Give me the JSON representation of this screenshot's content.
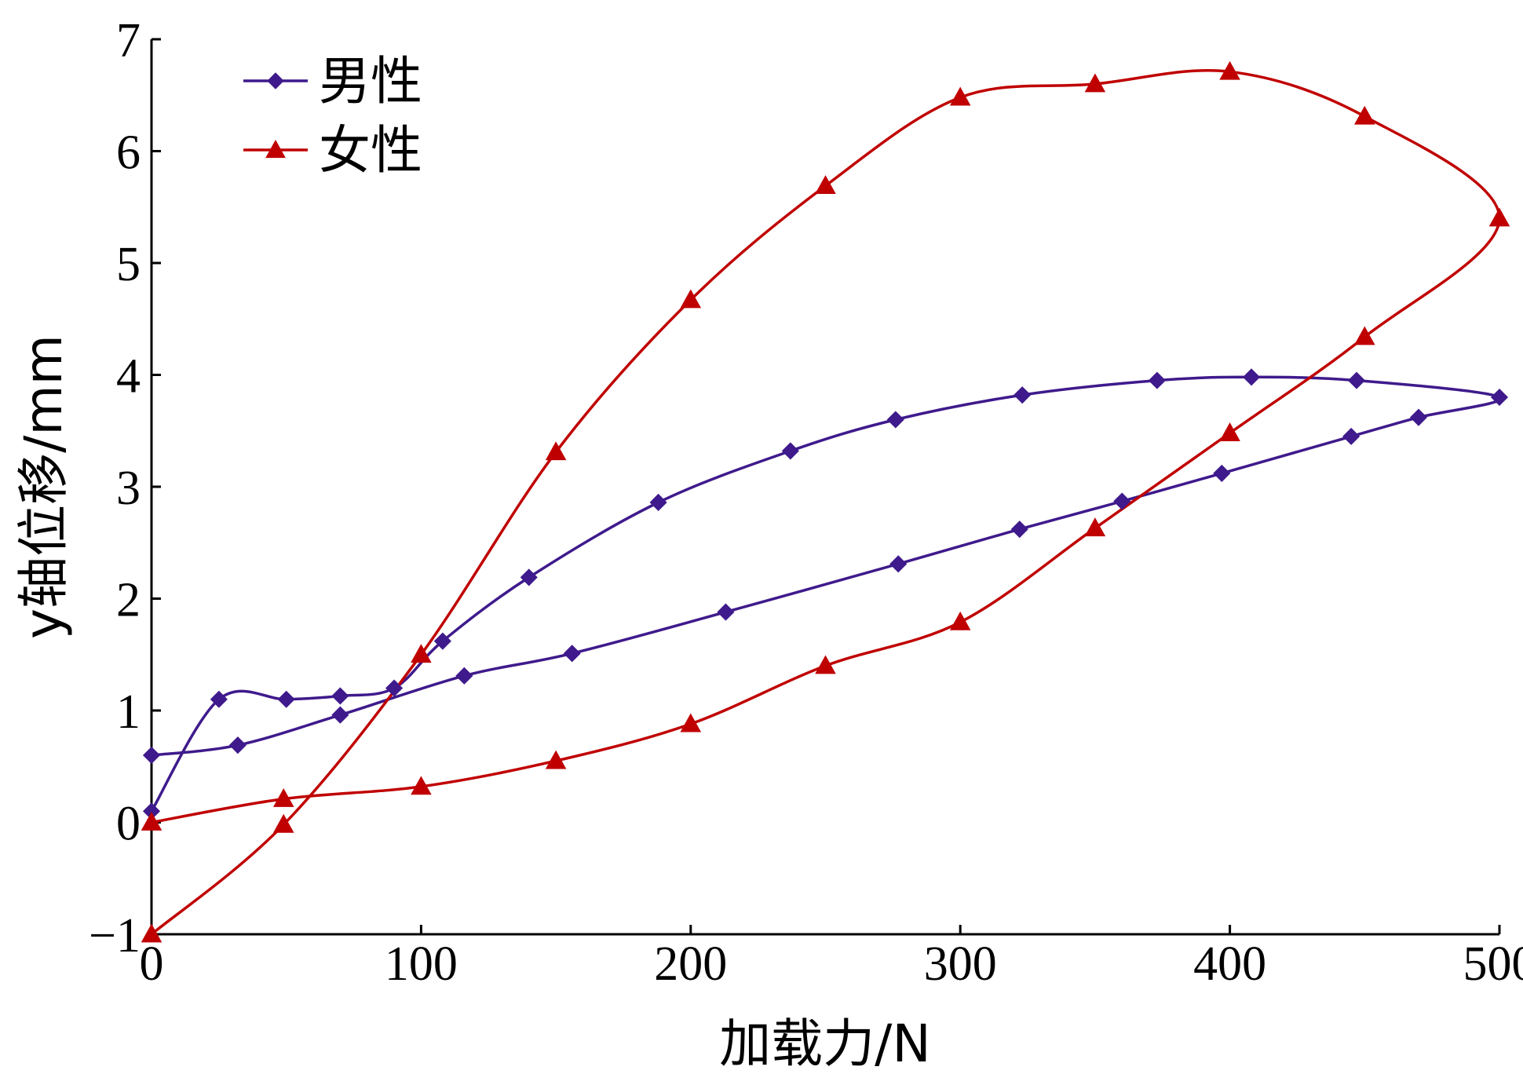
{
  "chart_data": {
    "type": "line",
    "xlabel": "加载力/N",
    "ylabel": "y轴位移/mm",
    "xlim": [
      0,
      500
    ],
    "ylim": [
      -1,
      7
    ],
    "xticks": [
      "0",
      "100",
      "200",
      "300",
      "400",
      "500"
    ],
    "yticks": [
      "−1",
      "0",
      "1",
      "2",
      "3",
      "4",
      "5",
      "6",
      "7"
    ],
    "grid": false,
    "legend_position": "top-left",
    "series": [
      {
        "name": "男性",
        "color": "#3f1a8c",
        "marker": "diamond",
        "points": [
          [
            0,
            0.1
          ],
          [
            25,
            1.1
          ],
          [
            50,
            1.1
          ],
          [
            70,
            1.13
          ],
          [
            90,
            1.2
          ],
          [
            108,
            1.62
          ],
          [
            140,
            2.19
          ],
          [
            188,
            2.86
          ],
          [
            237,
            3.32
          ],
          [
            276,
            3.6
          ],
          [
            323,
            3.82
          ],
          [
            373,
            3.95
          ],
          [
            408,
            3.98
          ],
          [
            447,
            3.95
          ],
          [
            500,
            3.8
          ],
          [
            470,
            3.62
          ],
          [
            445,
            3.45
          ],
          [
            397,
            3.12
          ],
          [
            360,
            2.87
          ],
          [
            322,
            2.62
          ],
          [
            277,
            2.31
          ],
          [
            213,
            1.88
          ],
          [
            156,
            1.51
          ],
          [
            116,
            1.31
          ],
          [
            70,
            0.96
          ],
          [
            32,
            0.69
          ],
          [
            0,
            0.6
          ]
        ]
      },
      {
        "name": "女性",
        "color": "#c00000",
        "marker": "triangle",
        "points": [
          [
            0,
            -1.0
          ],
          [
            49,
            -0.02
          ],
          [
            100,
            1.5
          ],
          [
            150,
            3.31
          ],
          [
            200,
            4.67
          ],
          [
            250,
            5.69
          ],
          [
            300,
            6.48
          ],
          [
            350,
            6.6
          ],
          [
            400,
            6.71
          ],
          [
            450,
            6.31
          ],
          [
            500,
            5.4
          ],
          [
            450,
            4.34
          ],
          [
            400,
            3.48
          ],
          [
            350,
            2.63
          ],
          [
            300,
            1.79
          ],
          [
            250,
            1.4
          ],
          [
            200,
            0.88
          ],
          [
            150,
            0.55
          ],
          [
            100,
            0.32
          ],
          [
            49,
            0.21
          ],
          [
            0,
            0.0
          ]
        ]
      }
    ]
  }
}
